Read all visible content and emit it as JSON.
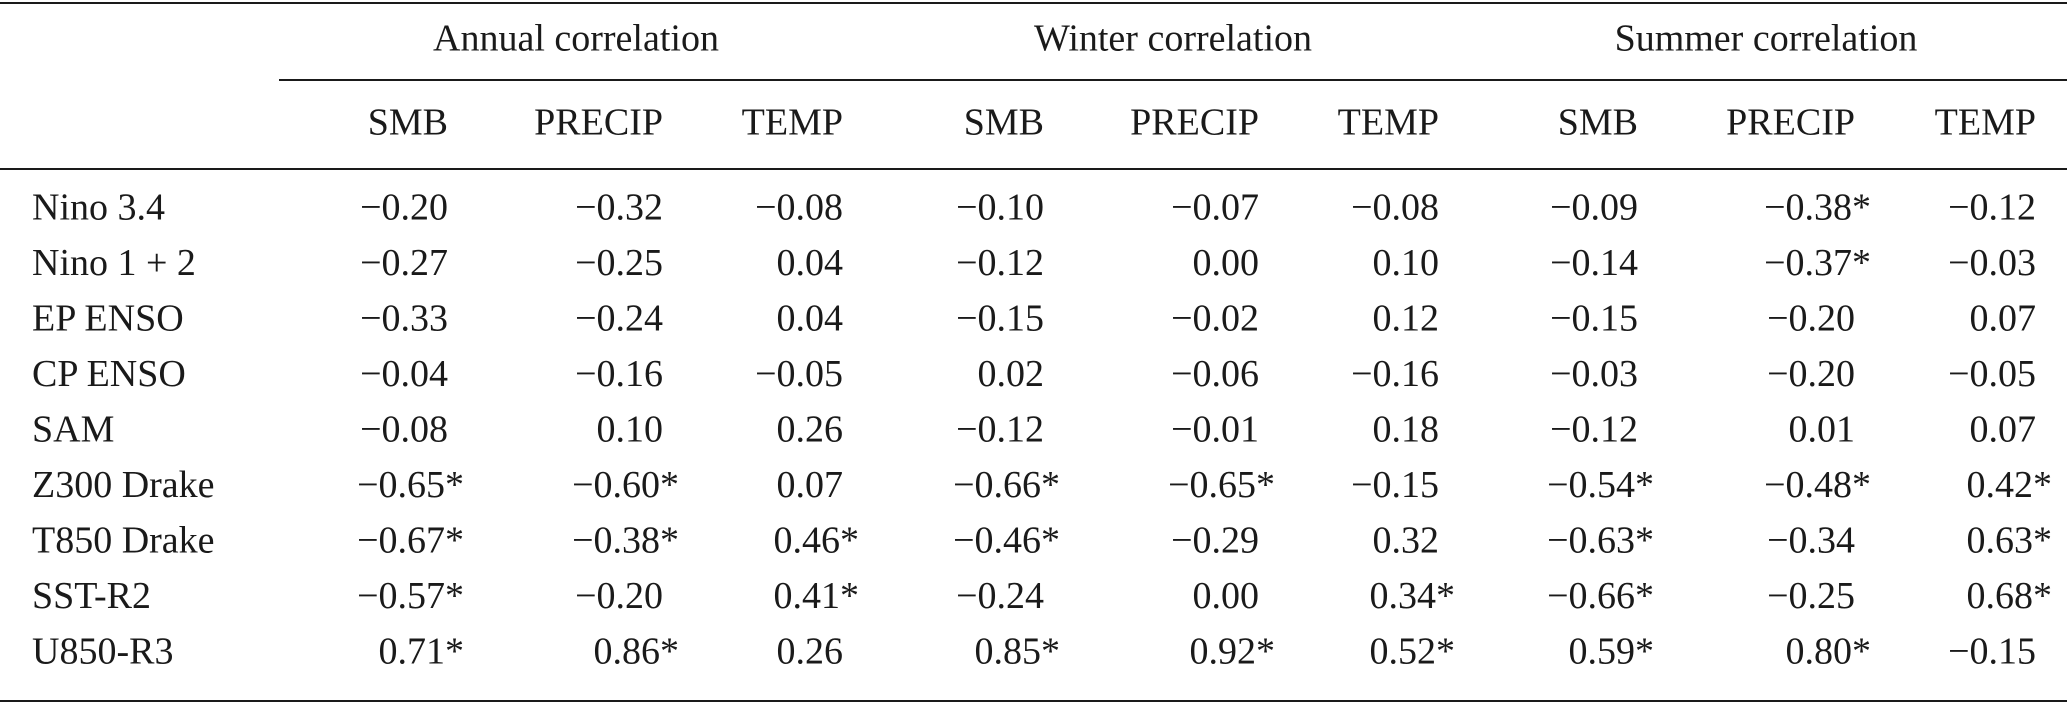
{
  "table": {
    "groups": [
      "Annual correlation",
      "Winter correlation",
      "Summer correlation"
    ],
    "columns": [
      "SMB",
      "PRECIP",
      "TEMP",
      "SMB",
      "PRECIP",
      "TEMP",
      "SMB",
      "PRECIP",
      "TEMP"
    ],
    "rows": [
      [
        "Nino 3.4",
        "−0.20",
        "−0.32",
        "−0.08",
        "−0.10",
        "−0.07",
        "−0.08",
        "−0.09",
        "−0.38*",
        "−0.12"
      ],
      [
        "Nino 1 + 2",
        "−0.27",
        "−0.25",
        "0.04",
        "−0.12",
        "0.00",
        "0.10",
        "−0.14",
        "−0.37*",
        "−0.03"
      ],
      [
        "EP ENSO",
        "−0.33",
        "−0.24",
        "0.04",
        "−0.15",
        "−0.02",
        "0.12",
        "−0.15",
        "−0.20",
        "0.07"
      ],
      [
        "CP ENSO",
        "−0.04",
        "−0.16",
        "−0.05",
        "0.02",
        "−0.06",
        "−0.16",
        "−0.03",
        "−0.20",
        "−0.05"
      ],
      [
        "SAM",
        "−0.08",
        "0.10",
        "0.26",
        "−0.12",
        "−0.01",
        "0.18",
        "−0.12",
        "0.01",
        "0.07"
      ],
      [
        "Z300 Drake",
        "−0.65*",
        "−0.60*",
        "0.07",
        "−0.66*",
        "−0.65*",
        "−0.15",
        "−0.54*",
        "−0.48*",
        "0.42*"
      ],
      [
        "T850 Drake",
        "−0.67*",
        "−0.38*",
        "0.46*",
        "−0.46*",
        "−0.29",
        "0.32",
        "−0.63*",
        "−0.34",
        "0.63*"
      ],
      [
        "SST-R2",
        "−0.57*",
        "−0.20",
        "0.41*",
        "−0.24",
        "0.00",
        "0.34*",
        "−0.66*",
        "−0.25",
        "0.68*"
      ],
      [
        "U850-R3",
        "0.71*",
        "0.86*",
        "0.26",
        "0.85*",
        "0.92*",
        "0.52*",
        "0.59*",
        "0.80*",
        "−0.15"
      ]
    ]
  }
}
